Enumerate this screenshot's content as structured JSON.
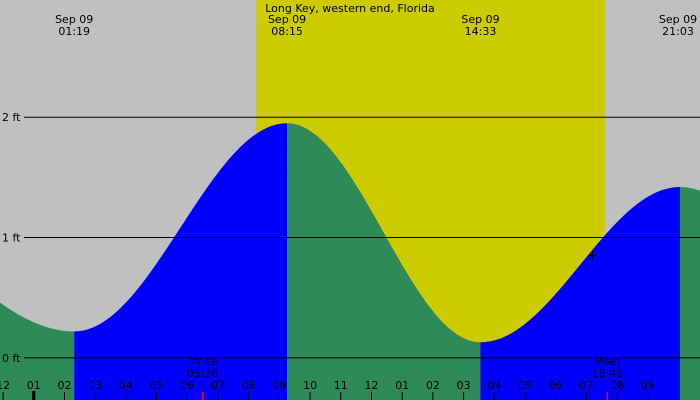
{
  "chart_data": {
    "type": "area",
    "title": "Long Key, western end, Florida",
    "unit": "ft",
    "x_domain_hours": [
      -1.1,
      21.7
    ],
    "ylim": [
      -0.35,
      2.6
    ],
    "y_ticks": [
      {
        "value": 0,
        "label": "0 ft"
      },
      {
        "value": 1,
        "label": "1 ft"
      },
      {
        "value": 2,
        "label": "2 ft"
      }
    ],
    "daylight": {
      "start": "07:15",
      "end": "18:36"
    },
    "extremes": [
      {
        "type": "low",
        "date": "Sep 09",
        "time": "01:19",
        "height": 0.22
      },
      {
        "type": "high",
        "date": "Sep 09",
        "time": "08:15",
        "height": 1.95
      },
      {
        "type": "low",
        "date": "Sep 09",
        "time": "14:33",
        "height": 0.13
      },
      {
        "type": "high",
        "date": "Sep 09",
        "time": "21:03",
        "height": 1.42
      }
    ],
    "curve_start": {
      "hour": -1.1,
      "height": 0.7
    },
    "hour_labels": [
      "11",
      "12",
      "01",
      "02",
      "03",
      "04",
      "05",
      "06",
      "07",
      "08",
      "09",
      "10",
      "11",
      "12",
      "01",
      "02",
      "03",
      "04",
      "05",
      "06",
      "07",
      "08",
      "09"
    ],
    "hour_label_start": -2,
    "midnight_hour": 0,
    "moon_events": [
      {
        "label": "Mrise",
        "time": "05:30"
      },
      {
        "label": "Mset",
        "time": "18:41"
      }
    ],
    "marker_hour": 18.2,
    "marker_height": 0.85
  },
  "colors": {
    "night": "#c0c0c0",
    "day": "#cccc00",
    "rising": "#0000ff",
    "falling": "#2e8b57",
    "moon_tick": "#ff0000",
    "text": "#000000"
  }
}
